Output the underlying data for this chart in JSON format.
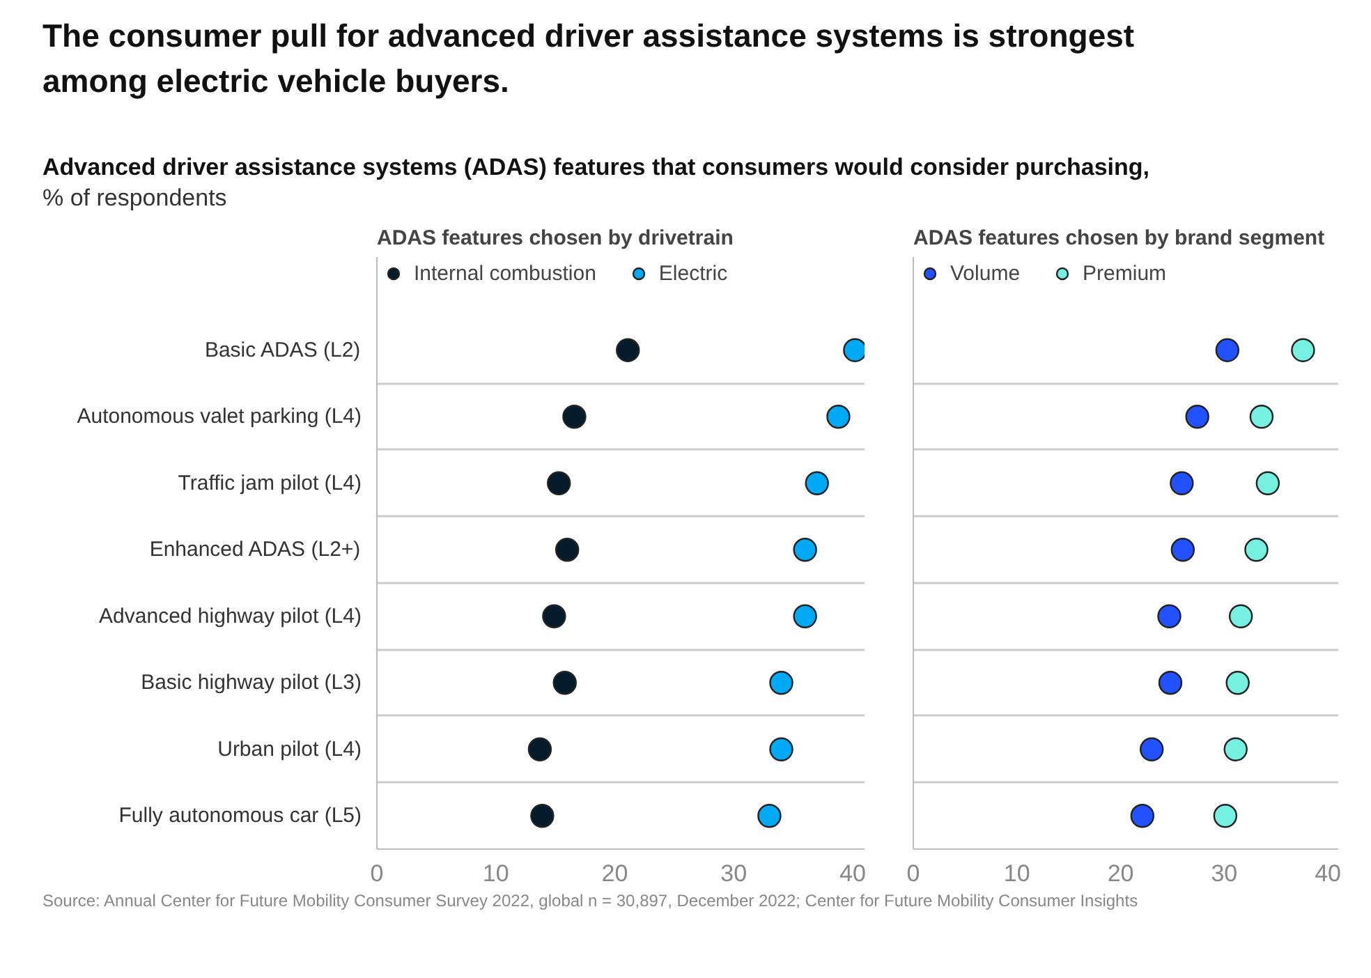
{
  "chart_data": [
    {
      "type": "scatter",
      "title": "ADAS features chosen by drivetrain",
      "annotations": [
        "The consumer pull for advanced driver  assistance systems is strongest among electric  vehicle buyers.",
        "Advanced driver  assistance systems (ADAS) features that consumers would consider purchasing,",
        "% of respondents"
      ],
      "categories": [
        "Basic ADAS (L2)",
        "Autonomous valet parking (L4)",
        "Traffic jam pilot (L4)",
        "Enhanced ADAS (L2+)",
        "Advanced highway pilot (L4)",
        "Basic highway pilot (L3)",
        "Urban pilot (L4)",
        "Fully autonomous car (L5)"
      ],
      "orientation": "horizontal",
      "series": [
        {
          "name": "Internal combustion",
          "color": "#051c2c",
          "values": [
            21.1,
            16.6,
            15.3,
            16.0,
            14.9,
            15.8,
            13.7,
            13.9
          ]
        },
        {
          "name": "Electric",
          "color": "#00a9f4",
          "values": [
            40.2,
            38.8,
            37.0,
            36.0,
            36.0,
            34.0,
            34.0,
            33.0
          ]
        }
      ],
      "xlim": [
        0,
        41
      ],
      "xticks": [
        0,
        10,
        20,
        30,
        40
      ],
      "grid": "y",
      "legend": "top",
      "marker": "circle"
    },
    {
      "type": "scatter",
      "title": "ADAS features chosen by brand segment",
      "annotations": [
        "Source: Annual Center for Future Mobility Consumer Survey 2022, global n = 30,897, December 2022; Center for Future Mobility Consumer Insights"
      ],
      "categories": [
        null,
        null,
        null,
        null,
        null,
        null,
        null,
        null
      ],
      "orientation": "horizontal",
      "series": [
        {
          "name": "Volume",
          "color": "#2251ff",
          "values": [
            30.3,
            27.4,
            25.9,
            26.0,
            24.7,
            24.8,
            23.0,
            22.1
          ]
        },
        {
          "name": "Premium",
          "color": "#76f0e0",
          "values": [
            37.6,
            33.6,
            34.2,
            33.1,
            31.6,
            31.3,
            31.1,
            30.1
          ]
        }
      ],
      "xlim": [
        0,
        41
      ],
      "xticks": [
        0,
        10,
        20,
        30,
        40
      ],
      "grid": "y",
      "legend": "top",
      "marker": "circle"
    }
  ]
}
